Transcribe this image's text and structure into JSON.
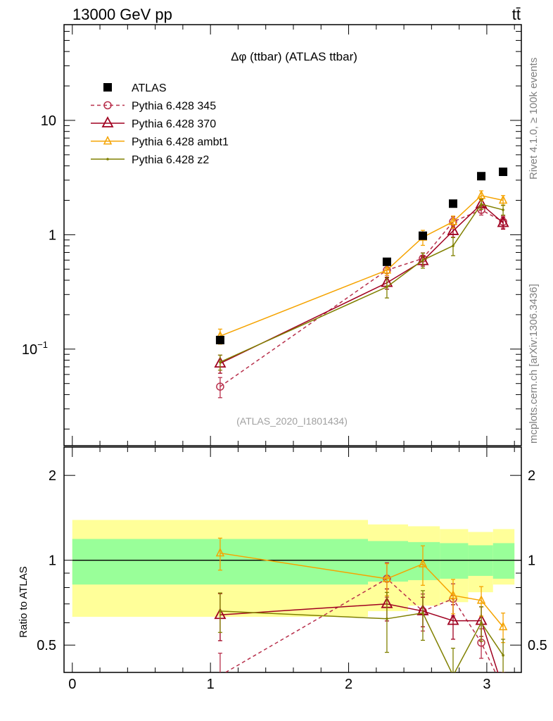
{
  "chart_data": [
    {
      "type": "line",
      "panel": "main",
      "title": "Δφ (ttbar) (ATLAS ttbar)",
      "top_left_label": "13000 GeV pp",
      "top_right_label": "tt̄",
      "side_label_top": "Rivet 4.1.0, ≥ 100k events",
      "side_label_bottom": "mcplots.cern.ch [arXiv:1306.3436]",
      "watermark": "(ATLAS_2020_I1801434)",
      "yscale": "log",
      "xlim": [
        -0.06,
        3.25
      ],
      "ylim": [
        0.0143,
        68.7
      ],
      "yticks": [
        {
          "v": 10,
          "label": "10"
        },
        {
          "v": 1,
          "label": "1"
        },
        {
          "v": 0.1,
          "label": "10",
          "sup": "−1"
        }
      ],
      "x": [
        1.07,
        2.277,
        2.537,
        2.756,
        2.96,
        3.118
      ],
      "bin_edges": [
        0,
        2.14,
        2.43,
        2.66,
        2.865,
        3.045,
        3.2
      ],
      "legend_position": "top-left",
      "series": [
        {
          "name": "ATLAS",
          "color": "#000000",
          "marker": "square",
          "line": "none",
          "values": [
            0.12,
            0.58,
            0.98,
            1.87,
            3.25,
            3.55
          ],
          "rel_err": [
            0.05,
            0.05,
            0.05,
            0.05,
            0.05,
            0.05
          ]
        },
        {
          "name": "Pythia 6.428 345",
          "color": "#b8304c",
          "marker": "circle",
          "line": "dashed",
          "values": [
            0.047,
            0.49,
            0.62,
            1.3,
            1.65,
            1.3
          ],
          "rel_err": [
            0.2,
            0.1,
            0.12,
            0.1,
            0.1,
            0.12
          ]
        },
        {
          "name": "Pythia 6.428 370",
          "color": "#a00020",
          "marker": "triangle",
          "line": "solid",
          "values": [
            0.075,
            0.38,
            0.59,
            1.08,
            1.85,
            1.27
          ],
          "rel_err": [
            0.18,
            0.12,
            0.1,
            0.12,
            0.1,
            0.12
          ]
        },
        {
          "name": "Pythia 6.428 ambt1",
          "color": "#f5a300",
          "marker": "triangle-small",
          "line": "solid",
          "values": [
            0.13,
            0.49,
            0.95,
            1.3,
            2.2,
            2.0
          ],
          "rel_err": [
            0.15,
            0.1,
            0.15,
            0.12,
            0.1,
            0.1
          ]
        },
        {
          "name": "Pythia 6.428 z2",
          "color": "#808000",
          "marker": "dot",
          "line": "solid",
          "values": [
            0.077,
            0.35,
            0.6,
            0.8,
            1.85,
            1.65
          ],
          "rel_err": [
            0.15,
            0.2,
            0.15,
            0.18,
            0.1,
            0.1
          ]
        }
      ]
    },
    {
      "type": "line",
      "panel": "ratio",
      "ylabel": "Ratio to ATLAS",
      "yscale": "log",
      "ylim": [
        0.4,
        2.52
      ],
      "yticks": [
        {
          "v": 2,
          "label": "2"
        },
        {
          "v": 1,
          "label": "1"
        },
        {
          "v": 0.5,
          "label": "0.5"
        }
      ],
      "xticks": [
        {
          "v": 0,
          "label": "0"
        },
        {
          "v": 1,
          "label": "1"
        },
        {
          "v": 2,
          "label": "2"
        },
        {
          "v": 3,
          "label": "3"
        }
      ],
      "band_outer": {
        "color": "#ffff99",
        "lo": [
          0.63,
          0.66,
          0.69,
          0.71,
          0.77,
          0.82
        ],
        "hi": [
          1.39,
          1.34,
          1.32,
          1.29,
          1.26,
          1.29
        ]
      },
      "band_inner": {
        "color": "#99ff99",
        "lo": [
          0.82,
          0.84,
          0.85,
          0.86,
          0.88,
          0.86
        ],
        "hi": [
          1.19,
          1.17,
          1.16,
          1.15,
          1.13,
          1.15
        ]
      },
      "series": [
        {
          "name": "Pythia 6.428 345",
          "values": [
            0.39,
            0.86,
            0.66,
            0.73,
            0.51,
            0.35
          ],
          "rel_err": [
            0.2,
            0.14,
            0.15,
            0.13,
            0.12,
            0.14
          ]
        },
        {
          "name": "Pythia 6.428 370",
          "values": [
            0.64,
            0.7,
            0.66,
            0.61,
            0.61,
            0.35
          ],
          "rel_err": [
            0.19,
            0.13,
            0.12,
            0.14,
            0.12,
            0.14
          ]
        },
        {
          "name": "Pythia 6.428 ambt1",
          "values": [
            1.06,
            0.86,
            0.97,
            0.75,
            0.72,
            0.58
          ],
          "rel_err": [
            0.13,
            0.13,
            0.16,
            0.14,
            0.12,
            0.12
          ]
        },
        {
          "name": "Pythia 6.428 z2",
          "values": [
            0.66,
            0.62,
            0.65,
            0.39,
            0.6,
            0.46
          ],
          "rel_err": [
            0.16,
            0.24,
            0.2,
            0.25,
            0.14,
            0.14
          ]
        }
      ]
    }
  ]
}
